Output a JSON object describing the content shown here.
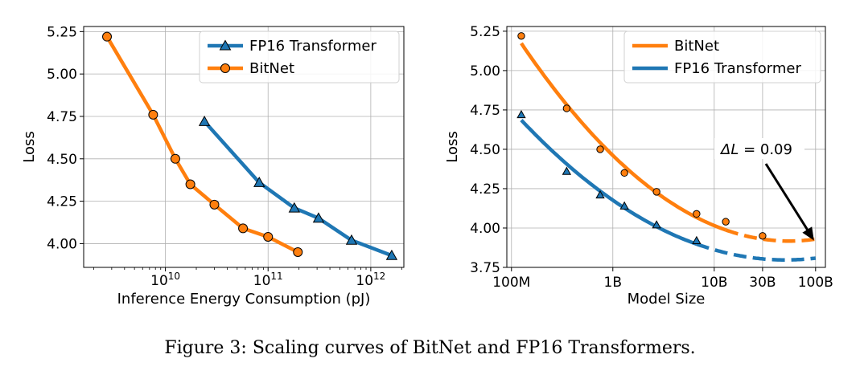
{
  "caption": "Figure 3: Scaling curves of BitNet and FP16 Transformers.",
  "chart_data": [
    {
      "type": "line",
      "xscale": "log",
      "xlabel": "Inference Energy Consumption (pJ)",
      "ylabel": "Loss",
      "xlim": [
        1600000000.0,
        2100000000000.0
      ],
      "ylim": [
        3.86,
        5.28
      ],
      "yticks": [
        4.0,
        4.25,
        4.5,
        4.75,
        5.0,
        5.25
      ],
      "ytick_labels": [
        "4.00",
        "4.25",
        "4.50",
        "4.75",
        "5.00",
        "5.25"
      ],
      "xtick_base": "10",
      "xtick_exps": [
        "10",
        "11",
        "12"
      ],
      "grid": true,
      "legend_position": "top-right",
      "series": [
        {
          "name": "FP16 Transformer",
          "color": "#1f77b4",
          "marker": "triangle",
          "x": [
            24000000000.0,
            82000000000.0,
            180000000000.0,
            310000000000.0,
            650000000000.0,
            1600000000000.0
          ],
          "y": [
            4.72,
            4.36,
            4.21,
            4.15,
            4.02,
            3.93
          ]
        },
        {
          "name": "BitNet",
          "color": "#ff7f0e",
          "marker": "circle",
          "x": [
            2700000000.0,
            7600000000.0,
            12500000000.0,
            17500000000.0,
            30000000000.0,
            57000000000.0,
            100000000000.0,
            195000000000.0
          ],
          "y": [
            5.22,
            4.76,
            4.5,
            4.35,
            4.23,
            4.09,
            4.04,
            3.95
          ]
        }
      ]
    },
    {
      "type": "line",
      "xscale": "log",
      "xlabel": "Model Size",
      "ylabel": "Loss",
      "xlim": [
        90000000.0,
        125000000000.0
      ],
      "ylim": [
        3.75,
        5.28
      ],
      "yticks": [
        3.75,
        4.0,
        4.25,
        4.5,
        4.75,
        5.0,
        5.25
      ],
      "ytick_labels": [
        "3.75",
        "4.00",
        "4.25",
        "4.50",
        "4.75",
        "5.00",
        "5.25"
      ],
      "xticks": [
        100000000.0,
        1000000000.0,
        10000000000.0,
        30000000000.0,
        100000000000.0
      ],
      "xtick_labels": [
        "100M",
        "1B",
        "10B",
        "30B",
        "100B"
      ],
      "grid": true,
      "legend_position": "top-right",
      "annotation": {
        "prefix": "ΔL",
        "text": " = 0.09",
        "arrow_to": [
          100000000000.0,
          3.89
        ]
      },
      "series": [
        {
          "name": "BitNet",
          "color": "#ff7f0e",
          "marker": "circle",
          "x": [
            125000000.0,
            350000000.0,
            750000000.0,
            1300000000.0,
            2700000000.0,
            6700000000.0,
            13000000000.0,
            30000000000.0
          ],
          "y": [
            5.22,
            4.76,
            4.5,
            4.35,
            4.23,
            4.09,
            4.04,
            3.95
          ],
          "fit_solid_until": 13000000000.0,
          "fit_end": 100000000000.0,
          "fit_end_y": 3.89
        },
        {
          "name": "FP16 Transformer",
          "color": "#1f77b4",
          "marker": "triangle",
          "x": [
            125000000.0,
            350000000.0,
            750000000.0,
            1300000000.0,
            2700000000.0,
            6700000000.0
          ],
          "y": [
            4.72,
            4.36,
            4.21,
            4.14,
            4.02,
            3.92
          ],
          "fit_solid_until": 6700000000.0,
          "fit_end": 100000000000.0,
          "fit_end_y": 3.8
        }
      ]
    }
  ]
}
